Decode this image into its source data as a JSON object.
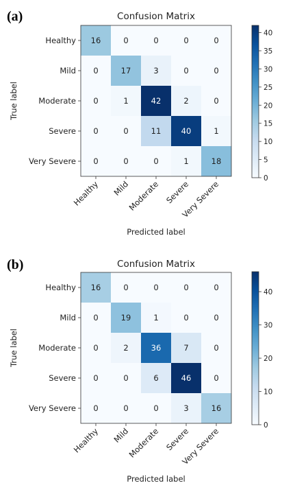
{
  "chart_data": [
    {
      "type": "heatmap",
      "panel_label": "(a)",
      "title": "Confusion Matrix",
      "xlabel": "Predicted label",
      "ylabel": "True label",
      "x_categories": [
        "Healthy",
        "Mild",
        "Moderate",
        "Severe",
        "Very Severe"
      ],
      "y_categories": [
        "Healthy",
        "Mild",
        "Moderate",
        "Severe",
        "Very Severe"
      ],
      "values": [
        [
          16,
          0,
          0,
          0,
          0
        ],
        [
          0,
          17,
          3,
          0,
          0
        ],
        [
          0,
          1,
          42,
          2,
          0
        ],
        [
          0,
          0,
          11,
          40,
          1
        ],
        [
          0,
          0,
          0,
          1,
          18
        ]
      ],
      "colormap": "Blues",
      "colorbar": {
        "min": 0,
        "max": 42,
        "ticks": [
          0,
          5,
          10,
          15,
          20,
          25,
          30,
          35,
          40
        ]
      }
    },
    {
      "type": "heatmap",
      "panel_label": "(b)",
      "title": "Confusion Matrix",
      "xlabel": "Predicted label",
      "ylabel": "True label",
      "x_categories": [
        "Healthy",
        "Mild",
        "Moderate",
        "Severe",
        "Very Severe"
      ],
      "y_categories": [
        "Healthy",
        "Mild",
        "Moderate",
        "Severe",
        "Very Severe"
      ],
      "values": [
        [
          16,
          0,
          0,
          0,
          0
        ],
        [
          0,
          19,
          1,
          0,
          0
        ],
        [
          0,
          2,
          36,
          7,
          0
        ],
        [
          0,
          0,
          6,
          46,
          0
        ],
        [
          0,
          0,
          0,
          3,
          16
        ]
      ],
      "colormap": "Blues",
      "colorbar": {
        "min": 0,
        "max": 46,
        "ticks": [
          0,
          10,
          20,
          30,
          40
        ]
      }
    }
  ]
}
